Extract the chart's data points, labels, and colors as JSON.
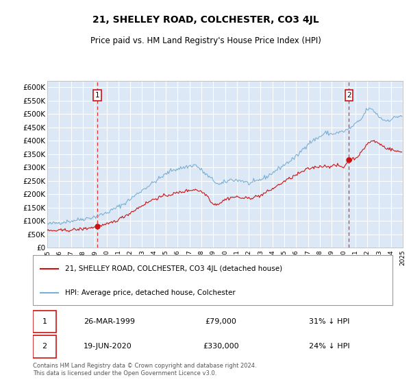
{
  "title": "21, SHELLEY ROAD, COLCHESTER, CO3 4JL",
  "subtitle": "Price paid vs. HM Land Registry's House Price Index (HPI)",
  "ylim": [
    0,
    625000
  ],
  "yticks": [
    0,
    50000,
    100000,
    150000,
    200000,
    250000,
    300000,
    350000,
    400000,
    450000,
    500000,
    550000,
    600000
  ],
  "ytick_labels": [
    "£0",
    "£50K",
    "£100K",
    "£150K",
    "£200K",
    "£250K",
    "£300K",
    "£350K",
    "£400K",
    "£450K",
    "£500K",
    "£550K",
    "£600K"
  ],
  "plot_bg_color": "#dce8f5",
  "grid_color": "#ffffff",
  "hpi_color": "#7bafd4",
  "price_color": "#cc1111",
  "marker1_year": 1999.23,
  "marker2_year": 2020.46,
  "sale1_price_y": 79000,
  "sale2_price_y": 330000,
  "sale1": {
    "date": "26-MAR-1999",
    "price": 79000,
    "pct": "31% ↓ HPI"
  },
  "sale2": {
    "date": "19-JUN-2020",
    "price": 330000,
    "pct": "24% ↓ HPI"
  },
  "legend_label1": "21, SHELLEY ROAD, COLCHESTER, CO3 4JL (detached house)",
  "legend_label2": "HPI: Average price, detached house, Colchester",
  "footer": "Contains HM Land Registry data © Crown copyright and database right 2024.\nThis data is licensed under the Open Government Licence v3.0.",
  "xlim_start": 1995,
  "xlim_end": 2025,
  "xticks": [
    1995,
    1996,
    1997,
    1998,
    1999,
    2000,
    2001,
    2002,
    2003,
    2004,
    2005,
    2006,
    2007,
    2008,
    2009,
    2010,
    2011,
    2012,
    2013,
    2014,
    2015,
    2016,
    2017,
    2018,
    2019,
    2020,
    2021,
    2022,
    2023,
    2024,
    2025
  ]
}
